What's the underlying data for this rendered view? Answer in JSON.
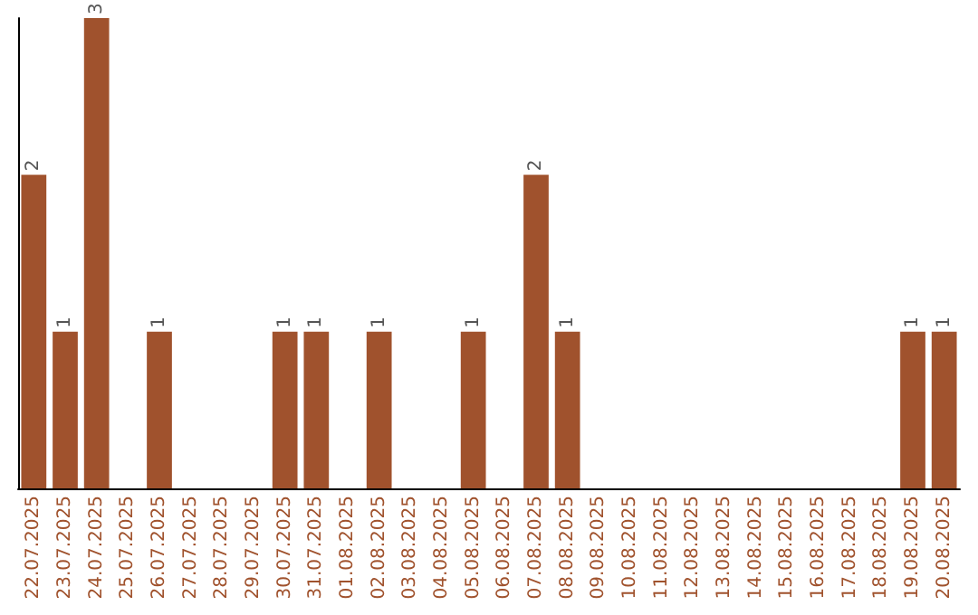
{
  "chart_data": {
    "type": "bar",
    "categories": [
      "22.07.2025",
      "23.07.2025",
      "24.07.2025",
      "25.07.2025",
      "26.07.2025",
      "27.07.2025",
      "28.07.2025",
      "29.07.2025",
      "30.07.2025",
      "31.07.2025",
      "01.08.2025",
      "02.08.2025",
      "03.08.2025",
      "04.08.2025",
      "05.08.2025",
      "06.08.2025",
      "07.08.2025",
      "08.08.2025",
      "09.08.2025",
      "10.08.2025",
      "11.08.2025",
      "12.08.2025",
      "13.08.2025",
      "14.08.2025",
      "15.08.2025",
      "16.08.2025",
      "17.08.2025",
      "18.08.2025",
      "19.08.2025",
      "20.08.2025"
    ],
    "values": [
      2,
      1,
      3,
      0,
      1,
      0,
      0,
      0,
      1,
      1,
      0,
      1,
      0,
      0,
      1,
      0,
      2,
      1,
      0,
      0,
      0,
      0,
      0,
      0,
      0,
      0,
      0,
      0,
      1,
      1
    ],
    "value_labels": [
      "2",
      "1",
      "3",
      null,
      "1",
      null,
      null,
      null,
      "1",
      "1",
      null,
      "1",
      null,
      null,
      "1",
      null,
      "2",
      "1",
      null,
      null,
      null,
      null,
      null,
      null,
      null,
      null,
      null,
      null,
      "1",
      "1"
    ],
    "color": "#a0522d",
    "tick_labels": "x"
  }
}
